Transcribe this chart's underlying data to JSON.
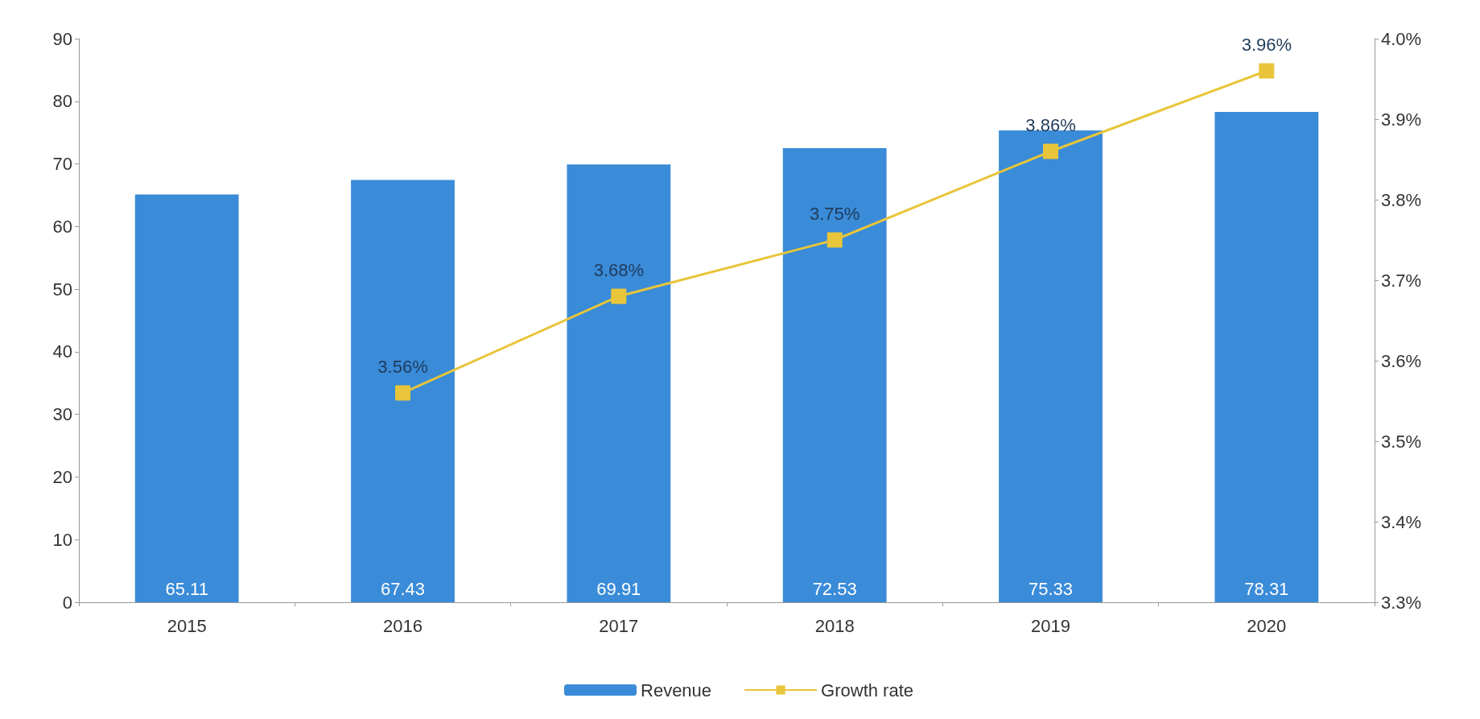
{
  "chart_data": {
    "type": "bar",
    "categories": [
      "2015",
      "2016",
      "2017",
      "2018",
      "2019",
      "2020"
    ],
    "series": [
      {
        "name": "Revenue",
        "color": "#3a8bd8",
        "values": [
          65.11,
          67.43,
          69.91,
          72.53,
          75.33,
          78.31
        ],
        "value_labels": [
          "65.11",
          "67.43",
          "69.91",
          "72.53",
          "75.33",
          "78.31"
        ]
      },
      {
        "name": "Growth rate",
        "type": "line",
        "axis": "y2",
        "color": "#e8c53a",
        "values": [
          null,
          3.56,
          3.68,
          3.75,
          3.86,
          3.96
        ],
        "value_labels": [
          null,
          "3.56%",
          "3.68%",
          "3.75%",
          "3.86%",
          "3.96%"
        ]
      }
    ],
    "ylim": [
      0,
      90
    ],
    "yticks": [
      0,
      10,
      20,
      30,
      40,
      50,
      60,
      70,
      80,
      90
    ],
    "y2lim": [
      3.3,
      4.0
    ],
    "y2ticks": [
      {
        "value": 3.3,
        "label": "3.3%"
      },
      {
        "value": 3.4,
        "label": "3.4%"
      },
      {
        "value": 3.5,
        "label": "3.5%"
      },
      {
        "value": 3.6,
        "label": "3.6%"
      },
      {
        "value": 3.7,
        "label": "3.7%"
      },
      {
        "value": 3.8,
        "label": "3.8%"
      },
      {
        "value": 3.9,
        "label": "3.9%"
      },
      {
        "value": 4.0,
        "label": "4.0%"
      }
    ],
    "grid": false,
    "legend": "bottom",
    "marker": "square"
  }
}
